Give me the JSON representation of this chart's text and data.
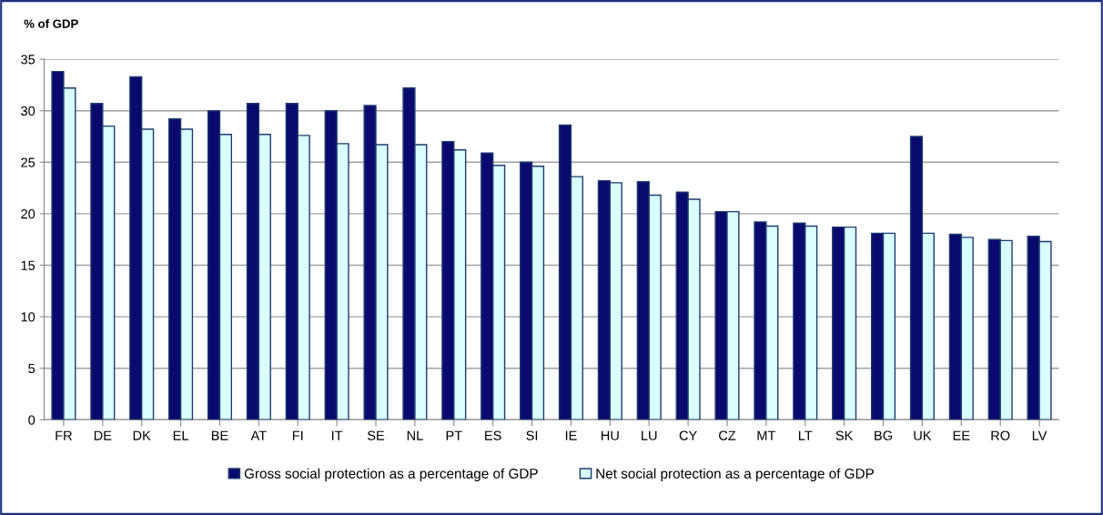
{
  "chart_data": {
    "type": "bar",
    "ylabel": "% of GDP",
    "categories": [
      "FR",
      "DE",
      "DK",
      "EL",
      "BE",
      "AT",
      "FI",
      "IT",
      "SE",
      "NL",
      "PT",
      "ES",
      "SI",
      "IE",
      "HU",
      "LU",
      "CY",
      "CZ",
      "MT",
      "LT",
      "SK",
      "BG",
      "UK",
      "EE",
      "RO",
      "LV"
    ],
    "series": [
      {
        "name": "Gross social protection as a percentage of GDP",
        "color": "#0a0a6e",
        "values": [
          33.8,
          30.7,
          33.3,
          29.2,
          30.0,
          30.7,
          30.7,
          30.0,
          30.5,
          32.2,
          27.0,
          25.9,
          25.0,
          28.6,
          23.2,
          23.1,
          22.1,
          20.2,
          19.2,
          19.1,
          18.7,
          18.1,
          27.5,
          18.0,
          17.5,
          17.8
        ]
      },
      {
        "name": "Net social protection as a percentage of GDP",
        "color": "#d9ffff",
        "values": [
          32.2,
          28.5,
          28.2,
          28.2,
          27.7,
          27.7,
          27.6,
          26.8,
          26.7,
          26.7,
          26.2,
          24.7,
          24.6,
          23.6,
          23.0,
          21.8,
          21.4,
          20.2,
          18.8,
          18.8,
          18.7,
          18.1,
          18.1,
          17.7,
          17.4,
          17.3
        ]
      }
    ],
    "ylim": [
      0,
      35
    ],
    "yticks": [
      0,
      5,
      10,
      15,
      20,
      25,
      30,
      35
    ],
    "grid": "y",
    "legend": "bottom"
  }
}
